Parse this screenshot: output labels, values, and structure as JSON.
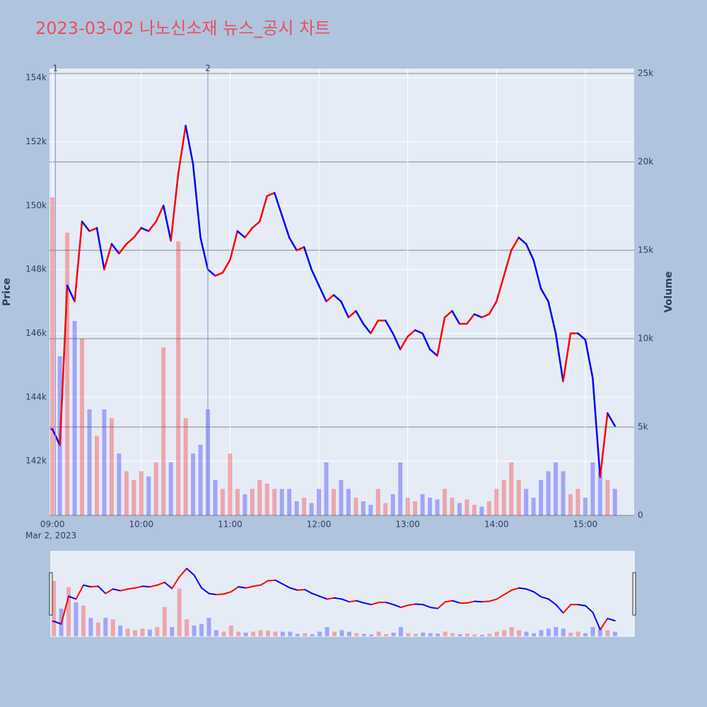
{
  "chart_data": {
    "type": "line",
    "title": "2023-03-02 나노신소재 뉴스_공시 차트",
    "x_sub_label": "Mar 2, 2023",
    "ylabel": "Price",
    "y2label": "Volume",
    "x": [
      "09:00",
      "09:05",
      "09:10",
      "09:15",
      "09:20",
      "09:25",
      "09:30",
      "09:35",
      "09:40",
      "09:45",
      "09:50",
      "09:55",
      "10:00",
      "10:05",
      "10:10",
      "10:15",
      "10:20",
      "10:25",
      "10:30",
      "10:35",
      "10:40",
      "10:45",
      "10:50",
      "10:55",
      "11:00",
      "11:05",
      "11:10",
      "11:15",
      "11:20",
      "11:25",
      "11:30",
      "11:35",
      "11:40",
      "11:45",
      "11:50",
      "11:55",
      "12:00",
      "12:05",
      "12:10",
      "12:15",
      "12:20",
      "12:25",
      "12:30",
      "12:35",
      "12:40",
      "12:45",
      "12:50",
      "12:55",
      "13:00",
      "13:05",
      "13:10",
      "13:15",
      "13:20",
      "13:25",
      "13:30",
      "13:35",
      "13:40",
      "13:45",
      "13:50",
      "13:55",
      "14:00",
      "14:05",
      "14:10",
      "14:15",
      "14:20",
      "14:25",
      "14:30",
      "14:35",
      "14:40",
      "14:45",
      "14:50",
      "14:55",
      "15:00",
      "15:05",
      "15:10",
      "15:15",
      "15:20"
    ],
    "xlim": [
      "08:58",
      "15:33"
    ],
    "xticks": [
      "09:00",
      "10:00",
      "11:00",
      "12:00",
      "13:00",
      "14:00",
      "15:00"
    ],
    "ylim": [
      140300,
      154290
    ],
    "yticks": [
      {
        "value": 142000,
        "label": "142k"
      },
      {
        "value": 144000,
        "label": "144k"
      },
      {
        "value": 146000,
        "label": "146k"
      },
      {
        "value": 148000,
        "label": "148k"
      },
      {
        "value": 150000,
        "label": "150k"
      },
      {
        "value": 152000,
        "label": "152k"
      },
      {
        "value": 154000,
        "label": "154k"
      }
    ],
    "y2lim": [
      0,
      25280
    ],
    "y2ticks": [
      0,
      {
        "value": 5000,
        "label": "5k"
      },
      {
        "value": 10000,
        "label": "10k"
      },
      {
        "value": 15000,
        "label": "15k"
      },
      {
        "value": 20000,
        "label": "20k"
      },
      {
        "value": 25000,
        "label": "25k"
      }
    ],
    "series": [
      {
        "up_color": "#ff0000",
        "down_color": "#0000ff",
        "values": [
          143000,
          142500,
          147500,
          147000,
          149500,
          149200,
          149300,
          148000,
          148800,
          148500,
          148800,
          149000,
          149300,
          149200,
          149500,
          150000,
          148900,
          151000,
          152500,
          151300,
          149000,
          148000,
          147800,
          147900,
          148300,
          149200,
          149000,
          149300,
          149500,
          150300,
          150400,
          149700,
          149000,
          148600,
          148700,
          148000,
          147500,
          147000,
          147200,
          147000,
          146500,
          146700,
          146300,
          146000,
          146400,
          146400,
          146000,
          145500,
          145900,
          146100,
          146000,
          145500,
          145300,
          146500,
          146700,
          146300,
          146300,
          146600,
          146500,
          146600,
          147000,
          147800,
          148600,
          149000,
          148800,
          148300,
          147400,
          147000,
          146000,
          144500,
          146000,
          146000,
          145800,
          144600,
          141500,
          143500,
          143100
        ]
      },
      {
        "axis": "y2",
        "up_color": "rgba(255,0,0,0.3)",
        "down_color": "rgba(0,0,255,0.3)",
        "values": [
          18000,
          9000,
          16000,
          11000,
          10000,
          6000,
          4500,
          6000,
          5500,
          3500,
          2500,
          2000,
          2500,
          2200,
          3000,
          9500,
          3000,
          15500,
          5500,
          3500,
          4000,
          6000,
          2000,
          1500,
          3500,
          1500,
          1200,
          1500,
          2000,
          1800,
          1500,
          1500,
          1500,
          800,
          1000,
          700,
          1500,
          3000,
          1500,
          2000,
          1500,
          1000,
          800,
          600,
          1500,
          700,
          1200,
          3000,
          1000,
          800,
          1200,
          1000,
          900,
          1500,
          1000,
          700,
          900,
          600,
          500,
          800,
          1500,
          2000,
          3000,
          2000,
          1500,
          1000,
          2000,
          2500,
          3000,
          2500,
          1200,
          1500,
          1000,
          3000,
          2500,
          2000,
          1500
        ]
      }
    ],
    "annotations": [
      {
        "x": "09:02",
        "label": "1"
      },
      {
        "x": "10:45",
        "label": "2"
      }
    ],
    "grid": true,
    "range_slider": true
  }
}
